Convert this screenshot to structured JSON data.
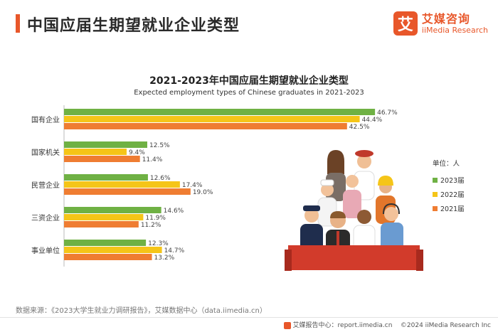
{
  "page": {
    "title": "中国应届生期望就业企业类型",
    "accent_color": "#e8572a"
  },
  "brand": {
    "icon_char": "艾",
    "name": "艾媒咨询",
    "sub": "iiMedia Research",
    "color": "#e8572a"
  },
  "chart_data": {
    "type": "bar",
    "orientation": "horizontal",
    "title": "2021-2023年中国应届生期望就业企业类型",
    "subtitle": "Expected employment types of Chinese graduates in 2021-2023",
    "unit_label": "单位：人",
    "categories": [
      "国有企业",
      "国家机关",
      "民营企业",
      "三资企业",
      "事业单位"
    ],
    "series": [
      {
        "name": "2023届",
        "color": "#6fb144",
        "values": [
          46.7,
          12.5,
          12.6,
          14.6,
          12.3
        ],
        "labels": [
          "46.7%",
          "12.5%",
          "12.6%",
          "14.6%",
          "12.3%"
        ]
      },
      {
        "name": "2022届",
        "color": "#f5c518",
        "values": [
          44.4,
          9.4,
          17.4,
          11.9,
          14.7
        ],
        "labels": [
          "44.4%",
          "9.4%",
          "17.4%",
          "11.9%",
          "14.7%"
        ]
      },
      {
        "name": "2021届",
        "color": "#ef7d32",
        "values": [
          42.5,
          11.4,
          19.0,
          11.2,
          13.2
        ],
        "labels": [
          "42.5%",
          "11.4%",
          "19.0%",
          "11.2%",
          "13.2%"
        ]
      }
    ],
    "xlim": [
      0,
      50
    ],
    "grid": false,
    "legend_position": "right"
  },
  "source": "数据来源：《2023大学生就业力调研报告》，艾媒数据中心（data.iimedia.cn）",
  "footer": {
    "report_center": "艾媒报告中心：report.iimedia.cn",
    "copyright": "©2024  iiMedia Research  Inc"
  },
  "illustration": {
    "banner_color": "#d23b2b"
  }
}
